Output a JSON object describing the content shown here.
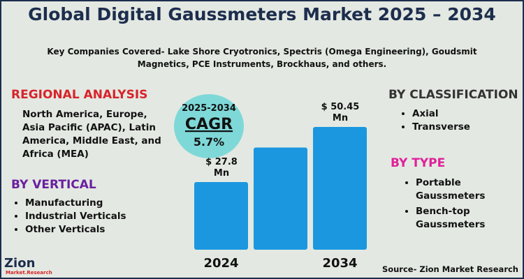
{
  "title": "Global Digital Gaussmeters Market 2025 – 2034",
  "subtitle": "Key Companies Covered- Lake Shore Cryotronics, Spectris (Omega Engineering), Goudsmit Magnetics, PCE Instruments, Brockhaus, and others.",
  "regional": {
    "heading": "REGIONAL ANALYSIS",
    "text": "North America, Europe, Asia Pacific (APAC), Latin America, Middle East, and Africa (MEA)"
  },
  "vertical": {
    "heading": "BY VERTICAL",
    "items": [
      "Manufacturing",
      "Industrial Verticals",
      "Other Verticals"
    ]
  },
  "classification": {
    "heading": "BY CLASSIFICATION",
    "items": [
      "Axial",
      "Transverse"
    ]
  },
  "by_type": {
    "heading": "BY TYPE",
    "items": [
      "Portable Gaussmeters",
      "Bench-top Gaussmeters"
    ]
  },
  "cagr": {
    "period": "2025-2034",
    "label": "CAGR",
    "value": "5.7%"
  },
  "source": "Source- Zion Market Research",
  "logo": {
    "name": "Zion",
    "sub": "Market.Research"
  },
  "chart_data": {
    "type": "bar",
    "categories": [
      "2024",
      null,
      "2034"
    ],
    "values": [
      27.8,
      42,
      50.45
    ],
    "value_labels": [
      "$ 27.8 Mn",
      null,
      "$ 50.45 Mn"
    ],
    "color": "#1b97e0"
  }
}
